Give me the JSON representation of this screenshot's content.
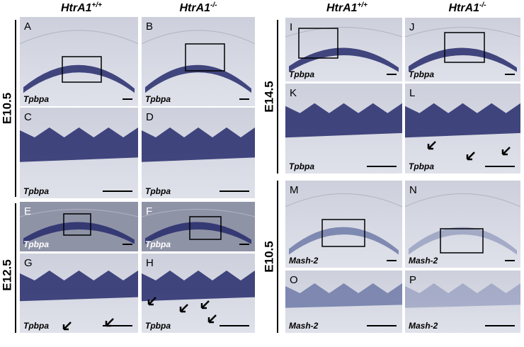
{
  "column_headers_left": [
    {
      "gene": "HtrA1",
      "genotype": "+/+"
    },
    {
      "gene": "HtrA1",
      "genotype": "-/-"
    }
  ],
  "column_headers_right": [
    {
      "gene": "HtrA1",
      "genotype": "+/+"
    },
    {
      "gene": "HtrA1",
      "genotype": "-/-"
    }
  ],
  "row_labels": [
    "E10.5",
    "E12.5",
    "E14.5",
    "E10.5"
  ],
  "panels": [
    {
      "letter": "A",
      "stain": "Tpbpa"
    },
    {
      "letter": "B",
      "stain": "Tpbpa"
    },
    {
      "letter": "C",
      "stain": "Tpbpa"
    },
    {
      "letter": "D",
      "stain": "Tpbpa"
    },
    {
      "letter": "E",
      "stain": "Tpbpa"
    },
    {
      "letter": "F",
      "stain": "Tpbpa"
    },
    {
      "letter": "G",
      "stain": "Tpbpa"
    },
    {
      "letter": "H",
      "stain": "Tpbpa"
    },
    {
      "letter": "I",
      "stain": "Tpbpa"
    },
    {
      "letter": "J",
      "stain": "Tpbpa"
    },
    {
      "letter": "K",
      "stain": "Tpbpa"
    },
    {
      "letter": "L",
      "stain": "Tpbpa"
    },
    {
      "letter": "M",
      "stain": "Mash-2"
    },
    {
      "letter": "N",
      "stain": "Mash-2"
    },
    {
      "letter": "O",
      "stain": "Mash-2"
    },
    {
      "letter": "P",
      "stain": "Mash-2"
    }
  ]
}
